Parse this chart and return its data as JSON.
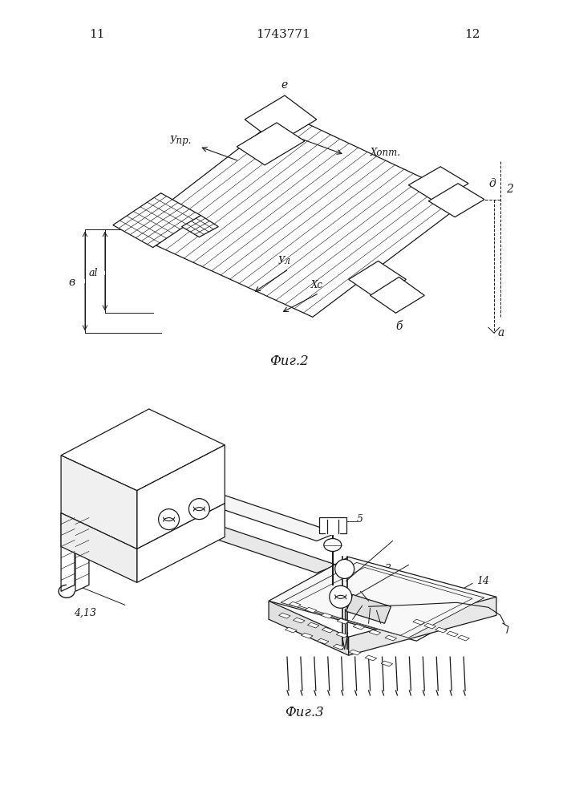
{
  "page_number_left": "11",
  "page_number_center": "1743771",
  "page_number_right": "12",
  "fig2_caption": "Фиг.2",
  "fig3_caption": "Фиг.3",
  "bg_color": "#ffffff",
  "line_color": "#1a1a1a"
}
